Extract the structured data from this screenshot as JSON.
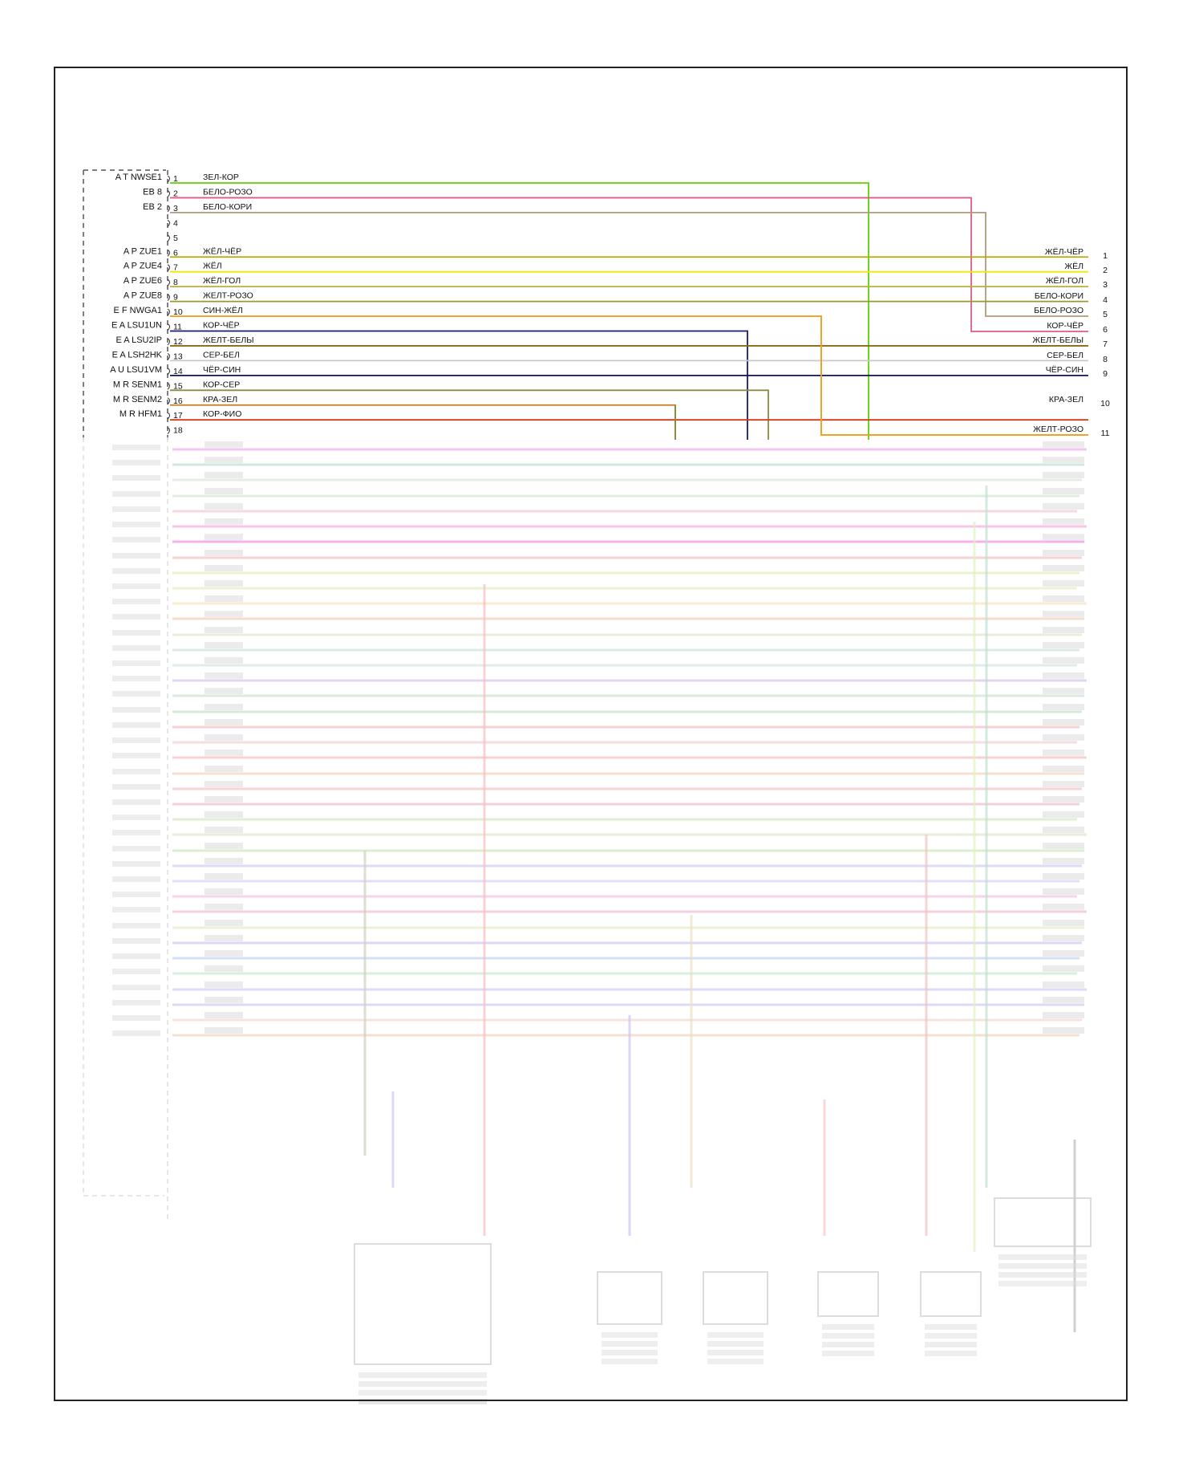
{
  "connector_pins": [
    {
      "pin": "1",
      "signal": "A T NWSE1",
      "color_label": "ЗЕЛ-КОР",
      "stroke": "#5fd000"
    },
    {
      "pin": "2",
      "signal": "EB 8",
      "color_label": "БЕЛО-РОЗО",
      "stroke": "#e05a86"
    },
    {
      "pin": "3",
      "signal": "EB 2",
      "color_label": "БЕЛО-КОРИ",
      "stroke": "#b09a7a"
    },
    {
      "pin": "4",
      "signal": "",
      "color_label": "",
      "stroke": ""
    },
    {
      "pin": "5",
      "signal": "",
      "color_label": "",
      "stroke": ""
    },
    {
      "pin": "6",
      "signal": "A P ZUE1",
      "color_label": "ЖЁЛ-ЧЁР",
      "stroke": "#b8a800"
    },
    {
      "pin": "7",
      "signal": "A P ZUE4",
      "color_label": "ЖЁЛ",
      "stroke": "#f2e600"
    },
    {
      "pin": "8",
      "signal": "A P ZUE6",
      "color_label": "ЖЁЛ-ГОЛ",
      "stroke": "#b8b03a"
    },
    {
      "pin": "9",
      "signal": "A P ZUE8",
      "color_label": "ЖЕЛТ-РОЗО",
      "stroke": "#9a9a2a"
    },
    {
      "pin": "10",
      "signal": "E F NWGA1",
      "color_label": "СИН-ЖЁЛ",
      "stroke": "#f0a020"
    },
    {
      "pin": "11",
      "signal": "E A LSU1UN",
      "color_label": "КОР-ЧЁР",
      "stroke": "#1a1a6a"
    },
    {
      "pin": "12",
      "signal": "E A LSU2IP",
      "color_label": "ЖЕЛТ-БЕЛЫ",
      "stroke": "#8a6a10"
    },
    {
      "pin": "13",
      "signal": "E A LSH2HK",
      "color_label": "СЕР-БЕЛ",
      "stroke": "#c8c8c8"
    },
    {
      "pin": "14",
      "signal": "A U LSU1VM",
      "color_label": "ЧЁР-СИН",
      "stroke": "#101060"
    },
    {
      "pin": "15",
      "signal": "M R SENM1",
      "color_label": "КОР-СЕР",
      "stroke": "#8a8a40"
    },
    {
      "pin": "16",
      "signal": "M R SENM2",
      "color_label": "КРА-ЗЕЛ",
      "stroke": "#c87a1a"
    },
    {
      "pin": "17",
      "signal": "M R HFM1",
      "color_label": "КОР-ФИО",
      "stroke": "#d03a1a"
    },
    {
      "pin": "18",
      "signal": "",
      "color_label": "",
      "stroke": ""
    }
  ],
  "right_terminals": [
    {
      "num": "1",
      "label": "ЖЁЛ-ЧЁР"
    },
    {
      "num": "2",
      "label": "ЖЁЛ"
    },
    {
      "num": "3",
      "label": "ЖЁЛ-ГОЛ"
    },
    {
      "num": "4",
      "label": "БЕЛО-КОРИ"
    },
    {
      "num": "5",
      "label": "БЕЛО-РОЗО"
    },
    {
      "num": "6",
      "label": "КОР-ЧЁР"
    },
    {
      "num": "7",
      "label": "ЖЕЛТ-БЕЛЫ"
    },
    {
      "num": "8",
      "label": "СЕР-БЕЛ"
    },
    {
      "num": "9",
      "label": "ЧЁР-СИН"
    },
    {
      "num": "10",
      "label": "КРА-ЗЕЛ"
    },
    {
      "num": "11",
      "label": "ЖЕЛТ-РОЗО"
    }
  ],
  "faded_wire_colors": [
    "#e58be6",
    "#9ed0b8",
    "#c8dcc8",
    "#bfe0b8",
    "#f0b0c0",
    "#f08cd0",
    "#e860e0",
    "#e8a8a0",
    "#d4e89a",
    "#d8e8a0",
    "#f0d8a0",
    "#f0b890",
    "#cfe0b0",
    "#b8d8c8",
    "#c0d8d8",
    "#c8a8e8",
    "#b8d8b8",
    "#a8d8b0",
    "#f0a0a8",
    "#f0b8c0",
    "#f0a0a0",
    "#f0c0a0",
    "#f0a8b0",
    "#e8a0b0",
    "#c0e0a8",
    "#c8e0b0",
    "#b0e0a0",
    "#b8b8f0",
    "#d0b8f0",
    "#f0a8d0",
    "#e8a0c0",
    "#e0e0a8",
    "#c0a8f0",
    "#a8c0f0",
    "#b0e0c0",
    "#c0b0f0",
    "#c0b0f0",
    "#f0c8b8",
    "#e8c0a8"
  ]
}
